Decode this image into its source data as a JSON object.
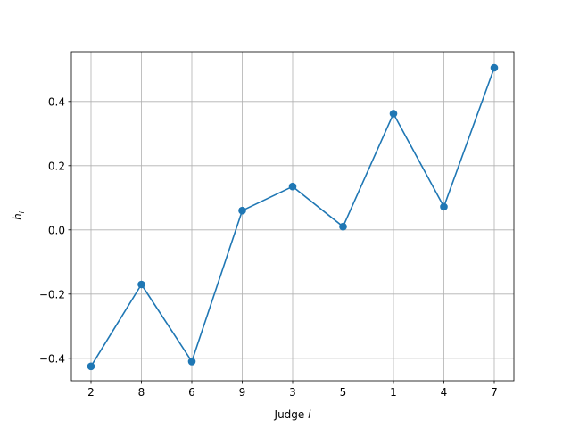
{
  "chart_data": {
    "type": "line",
    "categories": [
      "2",
      "8",
      "6",
      "9",
      "3",
      "5",
      "1",
      "4",
      "7"
    ],
    "series": [
      {
        "values": [
          -0.425,
          -0.17,
          -0.41,
          0.06,
          0.135,
          0.01,
          0.362,
          0.072,
          0.505
        ],
        "color": "#1f77b4",
        "marker": "circle"
      }
    ],
    "xlabel": "Judge i",
    "ylabel": "h_i",
    "ylim": [
      -0.47,
      0.555
    ],
    "yticks": [
      -0.4,
      -0.2,
      0.0,
      0.2,
      0.4
    ],
    "ytick_labels": [
      "−0.4",
      "−0.2",
      "0.0",
      "0.2",
      "0.4"
    ],
    "grid": true,
    "grid_color": "#b0b0b0"
  }
}
